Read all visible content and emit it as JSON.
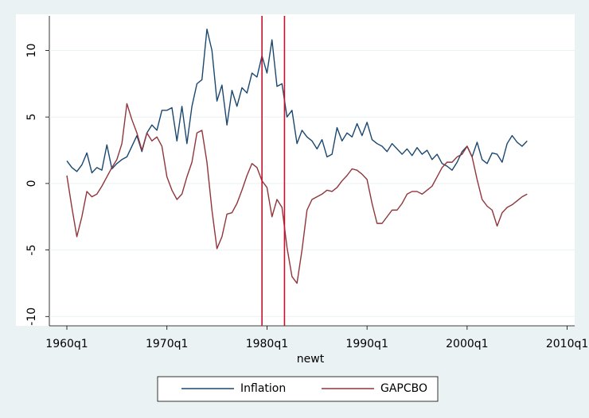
{
  "chart_data": {
    "type": "line",
    "xlabel": "newt",
    "x": [
      0,
      2,
      4,
      6,
      8,
      10,
      12,
      14,
      16,
      18,
      20,
      22,
      24,
      26,
      28,
      30,
      32,
      34,
      36,
      38,
      40,
      42,
      44,
      46,
      48,
      50,
      52,
      54,
      56,
      58,
      60,
      62,
      64,
      66,
      68,
      70,
      72,
      74,
      76,
      78,
      80,
      82,
      84,
      86,
      88,
      90,
      92,
      94,
      96,
      98,
      100,
      102,
      104,
      106,
      108,
      110,
      112,
      114,
      116,
      118,
      120,
      122,
      124,
      126,
      128,
      130,
      132,
      134,
      136,
      138,
      140,
      142,
      144,
      146,
      148,
      150,
      152,
      154,
      156,
      158,
      160,
      162,
      164,
      166,
      168,
      170,
      172,
      174,
      176,
      178,
      180,
      182,
      184
    ],
    "series": [
      {
        "name": "Inflation",
        "color": "#1a476f",
        "values": [
          1.7,
          1.2,
          0.9,
          1.4,
          2.3,
          0.8,
          1.2,
          1.0,
          2.9,
          1.1,
          1.5,
          1.8,
          2.0,
          2.8,
          3.6,
          2.4,
          3.8,
          4.4,
          4.0,
          5.5,
          5.5,
          5.7,
          3.2,
          5.8,
          3.0,
          5.8,
          7.5,
          7.8,
          11.6,
          10.0,
          6.2,
          7.4,
          4.4,
          7.0,
          5.8,
          7.2,
          6.8,
          8.3,
          8.0,
          9.6,
          8.3,
          10.8,
          7.3,
          7.5,
          5.0,
          5.5,
          3.0,
          4.0,
          3.5,
          3.2,
          2.6,
          3.3,
          2.0,
          2.2,
          4.2,
          3.2,
          3.8,
          3.5,
          4.5,
          3.6,
          4.6,
          3.3,
          3.0,
          2.8,
          2.4,
          3.0,
          2.6,
          2.2,
          2.6,
          2.1,
          2.7,
          2.2,
          2.5,
          1.8,
          2.2,
          1.5,
          1.3,
          1.0,
          1.6,
          2.4,
          2.8,
          2.0,
          3.1,
          1.8,
          1.5,
          2.3,
          2.2,
          1.6,
          3.0,
          3.6,
          3.1,
          2.8,
          3.2
        ]
      },
      {
        "name": "GAPCBO",
        "color": "#90353b",
        "values": [
          0.6,
          -1.8,
          -4.0,
          -2.5,
          -0.6,
          -1.0,
          -0.8,
          -0.2,
          0.5,
          1.2,
          1.8,
          3.0,
          6.0,
          4.8,
          3.8,
          2.5,
          3.8,
          3.2,
          3.5,
          2.8,
          0.5,
          -0.5,
          -1.2,
          -0.8,
          0.5,
          1.6,
          3.8,
          4.0,
          1.6,
          -2.0,
          -4.9,
          -4.0,
          -2.3,
          -2.2,
          -1.5,
          -0.5,
          0.6,
          1.5,
          1.2,
          0.2,
          -0.3,
          -2.5,
          -1.2,
          -1.8,
          -4.8,
          -7.0,
          -7.5,
          -5.0,
          -2.0,
          -1.2,
          -1.0,
          -0.8,
          -0.5,
          -0.6,
          -0.3,
          0.2,
          0.6,
          1.1,
          1.0,
          0.7,
          0.3,
          -1.5,
          -3.0,
          -3.0,
          -2.5,
          -2.0,
          -2.0,
          -1.5,
          -0.8,
          -0.6,
          -0.6,
          -0.8,
          -0.5,
          -0.2,
          0.5,
          1.2,
          1.6,
          1.6,
          2.0,
          2.2,
          2.8,
          2.0,
          0.3,
          -1.2,
          -1.7,
          -2.0,
          -3.2,
          -2.2,
          -1.8,
          -1.6,
          -1.3,
          -1.0,
          -0.8
        ]
      }
    ],
    "xlim": [
      -7,
      203
    ],
    "xticks": [
      {
        "value": 0,
        "label": "1960q1"
      },
      {
        "value": 40,
        "label": "1970q1"
      },
      {
        "value": 80,
        "label": "1980q1"
      },
      {
        "value": 120,
        "label": "1990q1"
      },
      {
        "value": 160,
        "label": "2000q1"
      },
      {
        "value": 200,
        "label": "2010q1"
      }
    ],
    "ylim": [
      -10.7,
      12.6
    ],
    "yticks": [
      -10,
      -5,
      0,
      5,
      10
    ],
    "grid": true,
    "xlines": [
      78,
      87
    ],
    "xline_color": "#c8102e",
    "legend": "bottom"
  }
}
